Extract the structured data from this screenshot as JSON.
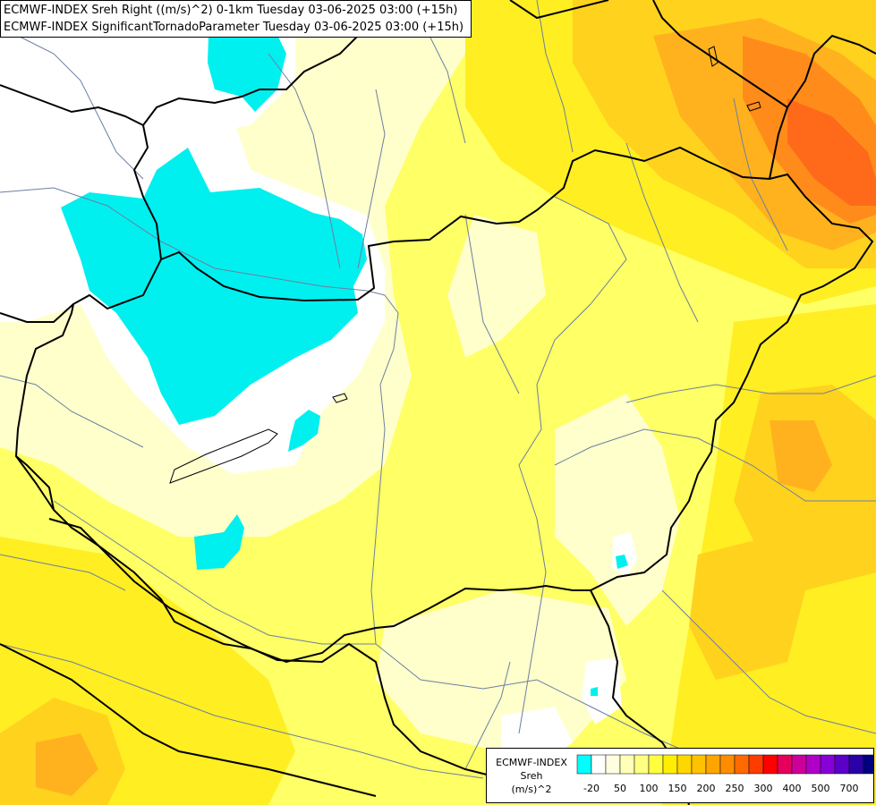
{
  "title": {
    "line1": "ECMWF-INDEX Sreh Right ((m/s)^2) 0-1km Tuesday 03-06-2025 03:00 (+15h)",
    "line2": "ECMWF-INDEX SignificantTornadoParameter Tuesday 03-06-2025 03:00 (+15h)"
  },
  "legend": {
    "source": "ECMWF-INDEX",
    "variable": "Sreh",
    "unit": "(m/s)^2",
    "tick_labels": [
      "-20",
      "50",
      "100",
      "150",
      "200",
      "250",
      "300",
      "400",
      "500",
      "700"
    ],
    "swatch_colors": [
      "#00ffff",
      "#ffffff",
      "#ffffe0",
      "#ffffb8",
      "#ffff80",
      "#ffff40",
      "#ffee00",
      "#ffd700",
      "#ffc200",
      "#ffa500",
      "#ff8c00",
      "#ff6a00",
      "#ff3c00",
      "#ff0000",
      "#e6005c",
      "#cc0099",
      "#b000c8",
      "#8800d8",
      "#5a00c8",
      "#2a00a8",
      "#000080"
    ]
  },
  "colors": {
    "low_sreh": "#00f0f0",
    "border": "#000000",
    "river": "#6c7fa0"
  }
}
